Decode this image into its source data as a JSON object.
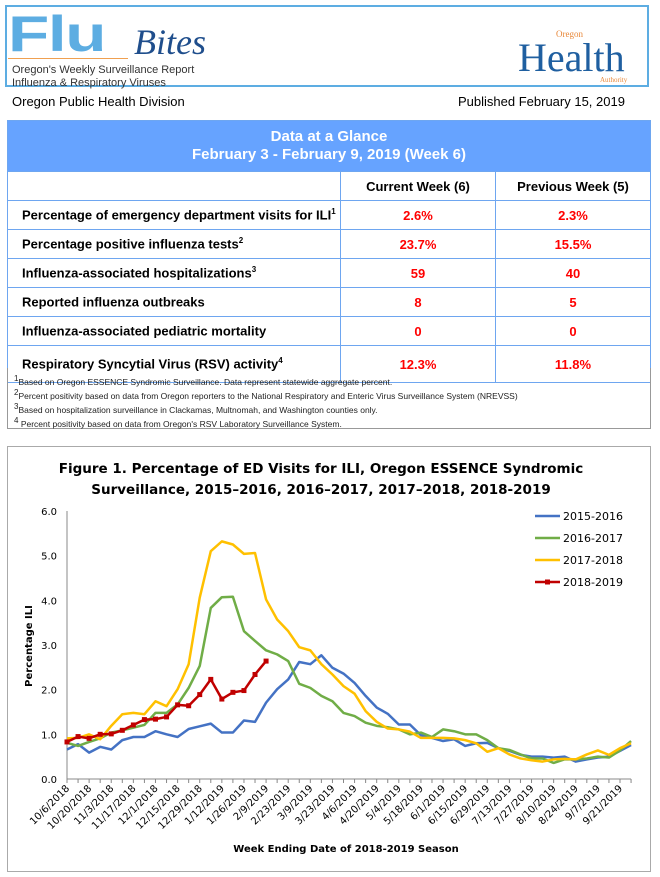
{
  "header": {
    "logo_flu": "Flu",
    "logo_bites": "Bites",
    "subtitle_1": "Oregon's Weekly Surveillance Report",
    "subtitle_2": "Influenza & Respiratory Viruses",
    "oha_logo": {
      "oregon": "Oregon",
      "health": "Health",
      "authority": "Authority"
    },
    "division": "Oregon Public Health Division",
    "published": "Published February 15, 2019",
    "colors": {
      "flu_blue": "#5dade2",
      "oha_blue": "#1f5fa0",
      "oha_orange": "#e8883a"
    }
  },
  "glance": {
    "title": "Data at a Glance",
    "period": "February 3 - February 9, 2019 (Week 6)",
    "header_color": "#66a3ff",
    "value_color": "#ff0000",
    "columns": [
      "Current Week (6)",
      "Previous Week (5)"
    ],
    "rows": [
      {
        "label": "Percentage of emergency department visits for ILI",
        "sup": "1",
        "current": "2.6%",
        "previous": "2.3%"
      },
      {
        "label": "Percentage positive influenza tests",
        "sup": "2",
        "current": "23.7%",
        "previous": "15.5%"
      },
      {
        "label": "Influenza-associated hospitalizations",
        "sup": "3",
        "current": "59",
        "previous": "40"
      },
      {
        "label": "Reported influenza outbreaks",
        "sup": "",
        "current": "8",
        "previous": "5"
      },
      {
        "label": "Influenza-associated pediatric mortality",
        "sup": "",
        "current": "0",
        "previous": "0"
      },
      {
        "label": "Respiratory Syncytial Virus (RSV) activity",
        "sup": "4",
        "current": "12.3%",
        "previous": "11.8%"
      }
    ],
    "footnotes": [
      {
        "sup": "1",
        "text": "Based on Oregon ESSENCE Syndromic Surveillance. Data represent statewide aggregate percent."
      },
      {
        "sup": "2",
        "text": "Percent positivity based on data from Oregon reporters to the National Respiratory and Enteric Virus Surveillance System (NREVSS)"
      },
      {
        "sup": "3",
        "text": "Based on hospitalization surveillance in Clackamas, Multnomah, and Washington counties only."
      },
      {
        "sup": "4",
        "text": " Percent positivity based on data from Oregon's RSV Laboratory Surveillance System."
      }
    ]
  },
  "chart_data": {
    "type": "line",
    "title_line1": "Figure 1. Percentage of ED Visits for ILI, Oregon ESSENCE Syndromic",
    "title_line2": "Surveillance, 2015–2016, 2016–2017, 2017–2018, 2018-2019",
    "xlabel": "Week Ending Date of 2018-2019 Season",
    "ylabel": "Percentage ILI",
    "ylim": [
      0,
      6
    ],
    "yticks": [
      "0.0",
      "1.0",
      "2.0",
      "3.0",
      "4.0",
      "5.0",
      "6.0"
    ],
    "x_tick_labels": [
      "10/6/2018",
      "10/20/2018",
      "11/3/2018",
      "11/17/2018",
      "12/1/2018",
      "12/15/2018",
      "12/29/2018",
      "1/12/2019",
      "1/26/2019",
      "2/9/2019",
      "2/23/2019",
      "3/9/2019",
      "3/23/2019",
      "4/6/2019",
      "4/20/2019",
      "5/4/2019",
      "5/18/2019",
      "6/1/2019",
      "6/15/2019",
      "6/29/2019",
      "7/13/2019",
      "7/27/2019",
      "8/10/2019",
      "8/24/2019",
      "9/7/2019",
      "9/21/2019"
    ],
    "grid": false,
    "legend": "top-right",
    "series": [
      {
        "name": "2015-2016",
        "color": "#4472c4",
        "markers": false,
        "values": [
          0.66,
          0.78,
          0.59,
          0.72,
          0.66,
          0.87,
          0.94,
          0.94,
          1.07,
          1.0,
          0.94,
          1.12,
          1.18,
          1.24,
          1.04,
          1.04,
          1.31,
          1.28,
          1.71,
          2.01,
          2.23,
          2.62,
          2.57,
          2.77,
          2.49,
          2.36,
          2.15,
          1.86,
          1.6,
          1.46,
          1.22,
          1.22,
          0.98,
          0.92,
          0.85,
          0.89,
          0.74,
          0.8,
          0.81,
          0.69,
          0.63,
          0.54,
          0.5,
          0.5,
          0.48,
          0.5,
          0.39,
          0.44,
          0.48,
          0.5,
          0.63,
          0.76
        ]
      },
      {
        "name": "2016-2017",
        "color": "#70ad47",
        "markers": false,
        "values": [
          0.81,
          0.74,
          0.83,
          0.91,
          1.04,
          1.09,
          1.15,
          1.21,
          1.48,
          1.48,
          1.67,
          2.04,
          2.53,
          3.83,
          4.07,
          4.08,
          3.31,
          3.09,
          2.88,
          2.79,
          2.64,
          2.13,
          2.04,
          1.86,
          1.74,
          1.48,
          1.41,
          1.26,
          1.19,
          1.16,
          1.11,
          1.0,
          1.04,
          0.94,
          1.11,
          1.07,
          1.0,
          1.0,
          0.87,
          0.69,
          0.65,
          0.55,
          0.46,
          0.46,
          0.36,
          0.44,
          0.44,
          0.46,
          0.5,
          0.48,
          0.64,
          0.85
        ]
      },
      {
        "name": "2017-2018",
        "color": "#ffc000",
        "markers": false,
        "values": [
          0.91,
          0.92,
          1.0,
          0.89,
          1.19,
          1.45,
          1.48,
          1.45,
          1.74,
          1.63,
          2.01,
          2.57,
          4.06,
          5.1,
          5.32,
          5.25,
          5.04,
          5.06,
          4.02,
          3.57,
          3.31,
          2.95,
          2.88,
          2.57,
          2.34,
          2.08,
          1.91,
          1.52,
          1.28,
          1.13,
          1.11,
          1.06,
          0.92,
          0.92,
          0.92,
          0.91,
          0.87,
          0.8,
          0.61,
          0.69,
          0.55,
          0.46,
          0.42,
          0.39,
          0.44,
          0.45,
          0.44,
          0.55,
          0.64,
          0.54,
          0.69,
          0.8
        ]
      },
      {
        "name": "2018-2019",
        "color": "#c00000",
        "markers": true,
        "values": [
          0.83,
          0.95,
          0.91,
          1.0,
          1.01,
          1.09,
          1.21,
          1.33,
          1.34,
          1.39,
          1.66,
          1.64,
          1.89,
          2.23,
          1.79,
          1.94,
          1.98,
          2.34,
          2.64
        ]
      }
    ]
  }
}
